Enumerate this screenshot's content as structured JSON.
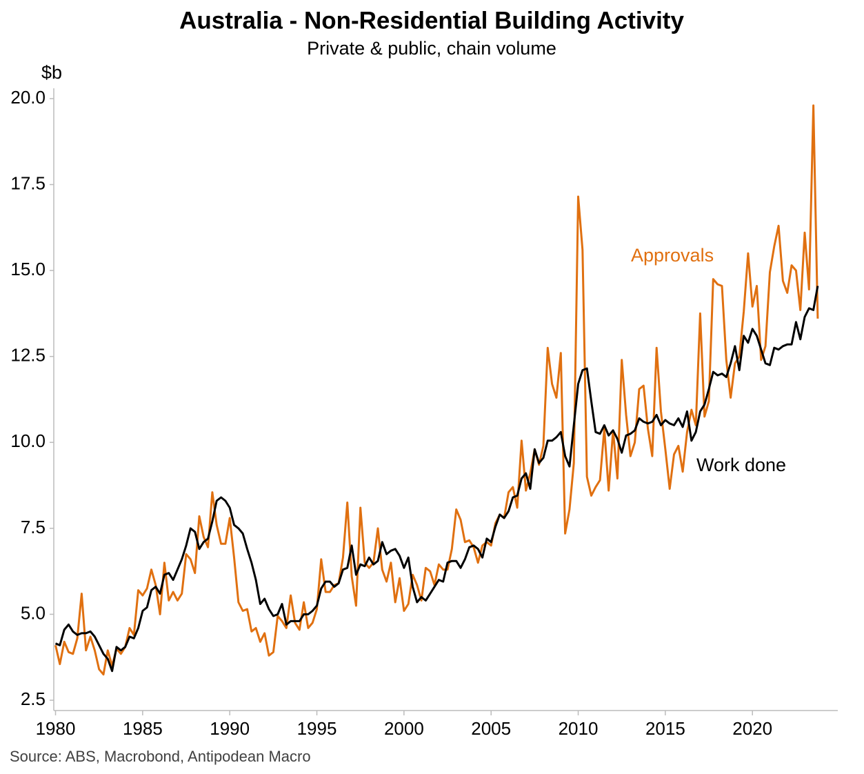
{
  "chart_data": {
    "type": "line",
    "title": "Australia - Non-Residential Building Activity",
    "subtitle": "Private & public, chain volume",
    "y_unit": "$b",
    "source": "Source: ABS, Macrobond, Antipodean Macro",
    "xlim": [
      1979.9,
      2024.9
    ],
    "xticks": [
      1980,
      1985,
      1990,
      1995,
      2000,
      2005,
      2010,
      2015,
      2020
    ],
    "ylim": [
      2.2,
      20.3
    ],
    "yticks": [
      {
        "value": 2.5,
        "label": "2.5"
      },
      {
        "value": 5,
        "label": "5.0"
      },
      {
        "value": 7.5,
        "label": "7.5"
      },
      {
        "value": 10,
        "label": "10.0"
      },
      {
        "value": 12.5,
        "label": "12.5"
      },
      {
        "value": 15,
        "label": "15.0"
      },
      {
        "value": 17.5,
        "label": "17.5"
      },
      {
        "value": 20,
        "label": "20.0"
      }
    ],
    "grid": false,
    "x": [
      1980,
      1980.25,
      1980.5,
      1980.75,
      1981,
      1981.25,
      1981.5,
      1981.75,
      1982,
      1982.25,
      1982.5,
      1982.75,
      1983,
      1983.25,
      1983.5,
      1983.75,
      1984,
      1984.25,
      1984.5,
      1984.75,
      1985,
      1985.25,
      1985.5,
      1985.75,
      1986,
      1986.25,
      1986.5,
      1986.75,
      1987,
      1987.25,
      1987.5,
      1987.75,
      1988,
      1988.25,
      1988.5,
      1988.75,
      1989,
      1989.25,
      1989.5,
      1989.75,
      1990,
      1990.25,
      1990.5,
      1990.75,
      1991,
      1991.25,
      1991.5,
      1991.75,
      1992,
      1992.25,
      1992.5,
      1992.75,
      1993,
      1993.25,
      1993.5,
      1993.75,
      1994,
      1994.25,
      1994.5,
      1994.75,
      1995,
      1995.25,
      1995.5,
      1995.75,
      1996,
      1996.25,
      1996.5,
      1996.75,
      1997,
      1997.25,
      1997.5,
      1997.75,
      1998,
      1998.25,
      1998.5,
      1998.75,
      1999,
      1999.25,
      1999.5,
      1999.75,
      2000,
      2000.25,
      2000.5,
      2000.75,
      2001,
      2001.25,
      2001.5,
      2001.75,
      2002,
      2002.25,
      2002.5,
      2002.75,
      2003,
      2003.25,
      2003.5,
      2003.75,
      2004,
      2004.25,
      2004.5,
      2004.75,
      2005,
      2005.25,
      2005.5,
      2005.75,
      2006,
      2006.25,
      2006.5,
      2006.75,
      2007,
      2007.25,
      2007.5,
      2007.75,
      2008,
      2008.25,
      2008.5,
      2008.75,
      2009,
      2009.25,
      2009.5,
      2009.75,
      2010,
      2010.25,
      2010.5,
      2010.75,
      2011,
      2011.25,
      2011.5,
      2011.75,
      2012,
      2012.25,
      2012.5,
      2012.75,
      2013,
      2013.25,
      2013.5,
      2013.75,
      2014,
      2014.25,
      2014.5,
      2014.75,
      2015,
      2015.25,
      2015.5,
      2015.75,
      2016,
      2016.25,
      2016.5,
      2016.75,
      2017,
      2017.25,
      2017.5,
      2017.75,
      2018,
      2018.25,
      2018.5,
      2018.75,
      2019,
      2019.25,
      2019.5,
      2019.75,
      2020,
      2020.25,
      2020.5,
      2020.75,
      2021,
      2021.25,
      2021.5,
      2021.75,
      2022,
      2022.25,
      2022.5,
      2022.75,
      2023,
      2023.25,
      2023.5,
      2023.75
    ],
    "series": [
      {
        "name": "Approvals",
        "color": "#e07010",
        "values": [
          4.1,
          3.55,
          4.2,
          3.9,
          3.85,
          4.3,
          5.6,
          3.95,
          4.35,
          3.95,
          3.4,
          3.25,
          3.95,
          3.5,
          4.0,
          3.85,
          4.05,
          4.6,
          4.4,
          5.7,
          5.55,
          5.75,
          6.3,
          5.85,
          5.0,
          6.5,
          5.4,
          5.65,
          5.4,
          5.6,
          6.75,
          6.6,
          6.2,
          7.85,
          7.25,
          6.95,
          8.55,
          7.6,
          7.05,
          7.05,
          7.8,
          6.65,
          5.35,
          5.1,
          5.15,
          4.5,
          4.6,
          4.2,
          4.45,
          3.8,
          3.9,
          4.95,
          4.8,
          4.6,
          5.55,
          4.75,
          4.55,
          5.35,
          4.6,
          4.75,
          5.15,
          6.6,
          5.65,
          5.65,
          5.85,
          5.9,
          6.65,
          8.25,
          6.1,
          5.25,
          8.1,
          6.5,
          6.35,
          6.5,
          7.5,
          6.3,
          5.95,
          6.5,
          5.35,
          6.05,
          5.1,
          5.3,
          6.15,
          5.85,
          5.4,
          6.35,
          6.25,
          5.85,
          6.45,
          6.3,
          6.3,
          6.9,
          8.05,
          7.75,
          7.1,
          7.15,
          6.95,
          6.5,
          7.0,
          7.1,
          7.0,
          7.65,
          7.9,
          7.8,
          8.55,
          8.7,
          8.1,
          10.05,
          8.6,
          9.1,
          9.8,
          9.35,
          9.9,
          12.75,
          11.7,
          11.3,
          12.6,
          7.35,
          8.05,
          9.4,
          17.15,
          15.6,
          9.0,
          8.45,
          8.7,
          8.9,
          10.4,
          8.6,
          10.35,
          8.95,
          12.4,
          10.8,
          9.6,
          10.0,
          11.55,
          11.65,
          10.4,
          9.6,
          12.75,
          10.9,
          9.8,
          8.65,
          9.65,
          9.9,
          9.15,
          10.3,
          10.95,
          10.5,
          13.75,
          10.75,
          11.2,
          14.75,
          14.6,
          14.55,
          12.4,
          11.3,
          12.3,
          12.5,
          13.8,
          15.5,
          13.95,
          14.55,
          12.4,
          12.8,
          14.95,
          15.7,
          16.3,
          14.7,
          14.35,
          15.15,
          15.0,
          13.85,
          16.1,
          14.45,
          19.8,
          13.6
        ]
      },
      {
        "name": "Work done",
        "color": "#000000",
        "values": [
          4.15,
          4.1,
          4.55,
          4.7,
          4.5,
          4.4,
          4.45,
          4.45,
          4.5,
          4.35,
          4.1,
          3.85,
          3.7,
          3.35,
          4.05,
          3.95,
          4.05,
          4.35,
          4.3,
          4.6,
          5.1,
          5.2,
          5.7,
          5.8,
          5.6,
          6.15,
          6.2,
          6.0,
          6.3,
          6.6,
          7.0,
          7.5,
          7.4,
          6.9,
          7.1,
          7.2,
          7.7,
          8.3,
          8.4,
          8.3,
          8.1,
          7.6,
          7.5,
          7.35,
          6.9,
          6.5,
          6.0,
          5.3,
          5.45,
          5.15,
          4.95,
          5.0,
          5.3,
          4.7,
          4.8,
          4.8,
          4.8,
          5.0,
          5.0,
          5.1,
          5.25,
          5.75,
          5.95,
          5.95,
          5.8,
          5.9,
          6.3,
          6.35,
          7.0,
          6.15,
          6.45,
          6.4,
          6.65,
          6.45,
          6.55,
          7.1,
          6.75,
          6.85,
          6.9,
          6.7,
          6.35,
          6.65,
          5.8,
          5.35,
          5.5,
          5.4,
          5.6,
          5.8,
          6.0,
          5.95,
          6.5,
          6.55,
          6.55,
          6.35,
          6.6,
          6.95,
          7.0,
          6.9,
          6.65,
          7.2,
          7.1,
          7.55,
          7.9,
          7.8,
          8.0,
          8.4,
          8.45,
          8.95,
          9.1,
          8.65,
          9.8,
          9.4,
          9.55,
          10.05,
          10.05,
          10.15,
          10.3,
          9.6,
          9.3,
          10.5,
          11.7,
          12.1,
          12.15,
          11.2,
          10.3,
          10.25,
          10.5,
          10.2,
          10.35,
          10.1,
          9.7,
          10.2,
          10.25,
          10.35,
          10.7,
          10.6,
          10.55,
          10.6,
          10.8,
          10.5,
          10.65,
          10.55,
          10.5,
          10.7,
          10.45,
          10.9,
          10.05,
          10.3,
          10.9,
          11.1,
          11.55,
          12.05,
          11.95,
          12.0,
          11.9,
          12.3,
          12.8,
          12.1,
          13.1,
          12.9,
          13.3,
          13.1,
          12.7,
          12.3,
          12.25,
          12.75,
          12.7,
          12.8,
          12.85,
          12.85,
          13.5,
          13.0,
          13.65,
          13.9,
          13.85,
          14.55
        ]
      }
    ]
  }
}
